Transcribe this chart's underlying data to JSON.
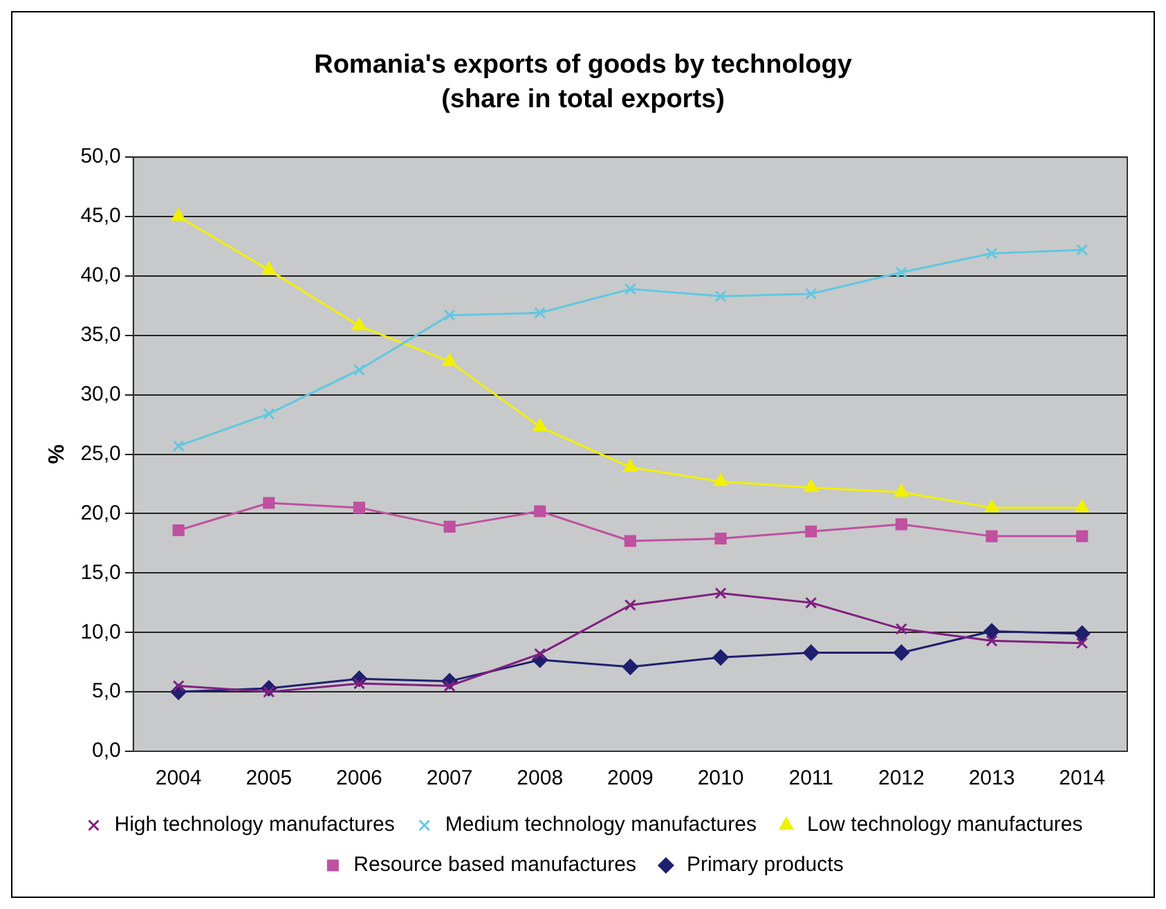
{
  "chart_data": {
    "type": "line",
    "title": "Romania's exports of goods by technology",
    "subtitle": "(share in total exports)",
    "ylabel": "%",
    "categories": [
      "2004",
      "2005",
      "2006",
      "2007",
      "2008",
      "2009",
      "2010",
      "2011",
      "2012",
      "2013",
      "2014"
    ],
    "series": [
      {
        "name": "Primary products",
        "color": "#1f1f6e",
        "marker": "diamond",
        "values": [
          5.0,
          5.3,
          6.1,
          5.9,
          7.7,
          7.1,
          7.9,
          8.3,
          8.3,
          10.1,
          9.9
        ]
      },
      {
        "name": "Resource based manufactures",
        "color": "#c050a0",
        "marker": "square",
        "values": [
          18.6,
          20.9,
          20.5,
          18.9,
          20.2,
          17.7,
          17.9,
          18.5,
          19.1,
          18.1,
          18.1
        ]
      },
      {
        "name": "Low technology manufactures",
        "color": "#f0f000",
        "marker": "triangle",
        "values": [
          45.0,
          40.5,
          35.8,
          32.8,
          27.3,
          23.9,
          22.7,
          22.2,
          21.8,
          20.5,
          20.5
        ]
      },
      {
        "name": "Medium technology manufactures",
        "color": "#60c8e0",
        "marker": "cross",
        "values": [
          25.7,
          28.4,
          32.1,
          36.7,
          36.9,
          38.9,
          38.3,
          38.5,
          40.3,
          41.9,
          42.2
        ]
      },
      {
        "name": "High technology manufactures",
        "color": "#802080",
        "marker": "cross",
        "values": [
          5.5,
          5.0,
          5.7,
          5.5,
          8.2,
          12.3,
          13.3,
          12.5,
          10.3,
          9.3,
          9.1
        ]
      }
    ],
    "ylim": [
      0,
      50
    ],
    "yticks": [
      {
        "value": 0,
        "label": "0,0"
      },
      {
        "value": 5,
        "label": "5,0"
      },
      {
        "value": 10,
        "label": "10,0"
      },
      {
        "value": 15,
        "label": "15,0"
      },
      {
        "value": 20,
        "label": "20,0"
      },
      {
        "value": 25,
        "label": "25,0"
      },
      {
        "value": 30,
        "label": "30,0"
      },
      {
        "value": 35,
        "label": "35,0"
      },
      {
        "value": 40,
        "label": "40,0"
      },
      {
        "value": 45,
        "label": "45,0"
      },
      {
        "value": 50,
        "label": "50,0"
      }
    ],
    "grid": "y",
    "legend": "bottom",
    "line_style": "solid"
  }
}
